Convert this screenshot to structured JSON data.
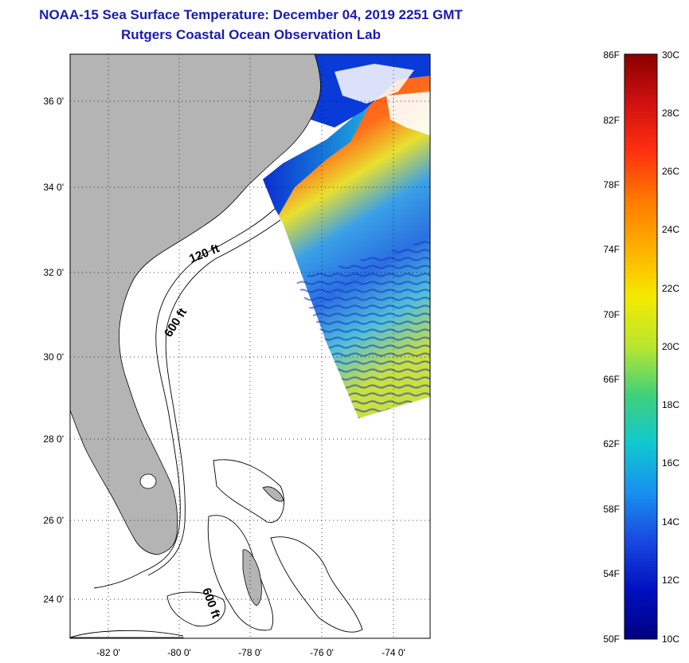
{
  "header": {
    "title": "NOAA-15 Sea Surface Temperature:  December 04, 2019 2251 GMT",
    "subtitle": "Rutgers Coastal Ocean Observation Lab"
  },
  "map": {
    "lat_ticks": [
      "36 0'",
      "34 0'",
      "32 0'",
      "30 0'",
      "28 0'",
      "26 0'",
      "24 0'"
    ],
    "lon_ticks": [
      "-82 0'",
      "-80 0'",
      "-78 0'",
      "-76 0'",
      "-74 0'"
    ],
    "contour_labels": [
      "120 ft",
      "600 ft",
      "600 ft"
    ],
    "colors": {
      "land": "#b4b4b4",
      "ocean_nodata": "#ffffff",
      "title": "#1a1ab4"
    }
  },
  "colorbar": {
    "fahrenheit_labels": [
      "86F",
      "82F",
      "78F",
      "74F",
      "70F",
      "66F",
      "62F",
      "58F",
      "54F",
      "50F"
    ],
    "celsius_labels": [
      "30C",
      "28C",
      "26C",
      "24C",
      "22C",
      "20C",
      "18C",
      "16C",
      "14C",
      "12C",
      "10C"
    ],
    "scale_colors": [
      "#8b0000",
      "#d01010",
      "#ff3010",
      "#ff7a00",
      "#ffb000",
      "#f4ea00",
      "#b8e630",
      "#3fd07a",
      "#10c8d0",
      "#1890f0",
      "#1848e0",
      "#0010c0",
      "#000080"
    ]
  }
}
